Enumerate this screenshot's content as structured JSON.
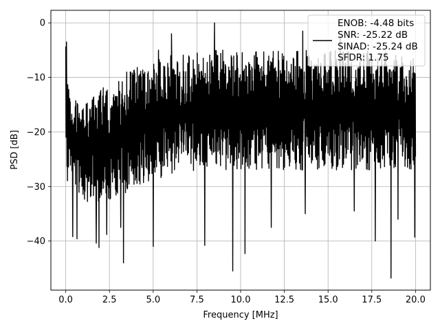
{
  "chart_data": {
    "type": "line",
    "title": "",
    "xlabel": "Frequency [MHz]",
    "ylabel": "PSD [dB]",
    "xlim": [
      -0.85,
      20.85
    ],
    "ylim": [
      -49,
      2.3
    ],
    "x_ticks": [
      0.0,
      2.5,
      5.0,
      7.5,
      10.0,
      12.5,
      15.0,
      17.5,
      20.0
    ],
    "x_tick_labels": [
      "0.0",
      "2.5",
      "5.0",
      "7.5",
      "10.0",
      "12.5",
      "15.0",
      "17.5",
      "20.0"
    ],
    "y_ticks": [
      0,
      -10,
      -20,
      -30,
      -40
    ],
    "y_tick_labels": [
      "0",
      "−10",
      "−20",
      "−30",
      "−40"
    ],
    "grid": true,
    "legend": {
      "placement": "top-right",
      "entries": [
        "ENOB: -4.48 bits",
        "SNR: -25.22 dB",
        "SINAD: -25.24 dB",
        "SFDR: 1.75"
      ]
    },
    "series": [
      {
        "color": "#000000",
        "x_range": [
          0,
          20
        ],
        "num_points": 1400,
        "envelope": {
          "x": [
            0.0,
            0.05,
            0.2,
            1.0,
            2.5,
            4.0,
            6.0,
            8.0,
            10.0,
            12.5,
            15.0,
            17.5,
            20.0
          ],
          "peak": [
            -3.5,
            -8.0,
            -12.0,
            -14.0,
            -11.0,
            -8.0,
            -6.0,
            -5.0,
            -5.0,
            -5.0,
            -5.0,
            -5.0,
            -6.0
          ],
          "low": [
            -32.0,
            -30.0,
            -28.0,
            -33.0,
            -33.0,
            -30.0,
            -28.0,
            -27.0,
            -27.0,
            -27.0,
            -27.0,
            -27.0,
            -27.0
          ]
        },
        "peaks": [
          {
            "x": 0.05,
            "y": -3.5
          },
          {
            "x": 8.5,
            "y": 0.0
          },
          {
            "x": 6.05,
            "y": -2.0
          },
          {
            "x": 13.55,
            "y": -1.5
          },
          {
            "x": 15.7,
            "y": -2.4
          },
          {
            "x": 5.3,
            "y": -5.0
          }
        ],
        "dips": [
          {
            "x": 0.4,
            "y": -39.2
          },
          {
            "x": 0.65,
            "y": -39.6
          },
          {
            "x": 1.75,
            "y": -40.4
          },
          {
            "x": 1.9,
            "y": -41.2
          },
          {
            "x": 2.35,
            "y": -38.8
          },
          {
            "x": 3.3,
            "y": -44.0
          },
          {
            "x": 3.15,
            "y": -37.5
          },
          {
            "x": 5.0,
            "y": -41.0
          },
          {
            "x": 7.95,
            "y": -40.8
          },
          {
            "x": 9.55,
            "y": -45.5
          },
          {
            "x": 10.25,
            "y": -42.3
          },
          {
            "x": 11.75,
            "y": -37.5
          },
          {
            "x": 13.7,
            "y": -35.0
          },
          {
            "x": 16.5,
            "y": -34.5
          },
          {
            "x": 17.7,
            "y": -40.0
          },
          {
            "x": 18.6,
            "y": -46.8
          },
          {
            "x": 19.0,
            "y": -36.0
          },
          {
            "x": 19.95,
            "y": -39.3
          }
        ]
      }
    ]
  }
}
